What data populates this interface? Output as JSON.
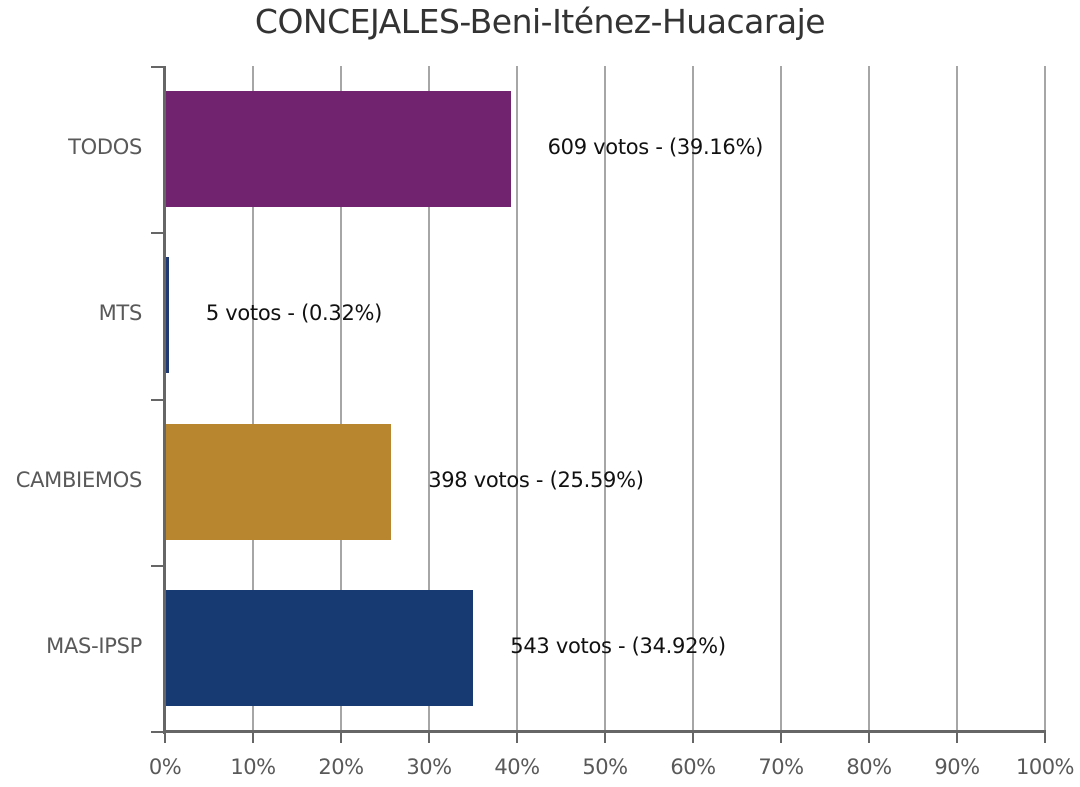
{
  "chart_data": {
    "type": "bar",
    "orientation": "horizontal",
    "title": "CONCEJALES-Beni-Iténez-Huacaraje",
    "xlabel": "",
    "ylabel": "",
    "xlim": [
      0,
      100
    ],
    "x_ticks": [
      "0%",
      "10%",
      "20%",
      "30%",
      "40%",
      "50%",
      "60%",
      "70%",
      "80%",
      "90%",
      "100%"
    ],
    "grid": true,
    "legend": null,
    "categories": [
      "TODOS",
      "MTS",
      "CAMBIEMOS",
      "MAS-IPSP"
    ],
    "values": [
      39.16,
      0.32,
      25.59,
      34.92
    ],
    "votes": [
      609,
      5,
      398,
      543
    ],
    "colors": [
      "#722370",
      "#1f3a73",
      "#b8862e",
      "#173a72"
    ],
    "data_labels": [
      "609 votos - (39.16%)",
      "5 votos - (0.32%)",
      "398 votos - (25.59%)",
      "543 votos - (34.92%)"
    ]
  }
}
